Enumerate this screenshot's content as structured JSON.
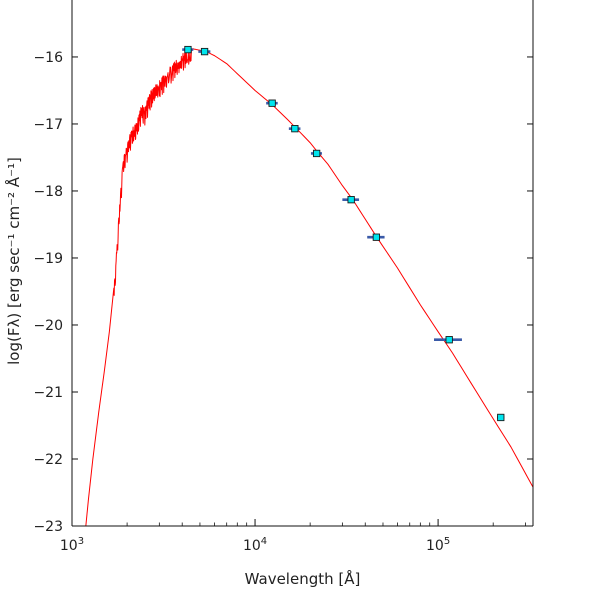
{
  "chart_data": {
    "type": "line",
    "xlabel": "Wavelength [Å]",
    "ylabel": "log(Fλ) [erg sec⁻¹ cm⁻² Å⁻¹]",
    "x_scale": "log",
    "xlim": [
      1000,
      330000
    ],
    "ylim": [
      -23,
      -15.15
    ],
    "x_ticks": [
      {
        "value": 1000,
        "base": "10",
        "exp": "3"
      },
      {
        "value": 10000,
        "base": "10",
        "exp": "4"
      },
      {
        "value": 100000,
        "base": "10",
        "exp": "5"
      }
    ],
    "y_ticks": [
      -16,
      -17,
      -18,
      -19,
      -20,
      -21,
      -22,
      -23
    ],
    "grid": false,
    "colors": {
      "model": "#ff0000",
      "errorbar": "#3a5aa8",
      "marker_fill": "#00e5ee",
      "marker_edge": "#1a1a1a",
      "axis": "#111111"
    },
    "series": [
      {
        "kind": "model_spectrum",
        "x": [
          1190,
          1230,
          1300,
          1400,
          1500,
          1600,
          1700,
          1800,
          1900,
          2000,
          2100,
          2200,
          2300,
          2400,
          2500,
          2600,
          2700,
          2800,
          3000,
          3200,
          3500,
          3800,
          4000,
          4300,
          4600,
          5000,
          5500,
          6000,
          7000,
          8000,
          10000,
          12500,
          15000,
          17000,
          20000,
          22000,
          25000,
          30000,
          34000,
          40000,
          46000,
          60000,
          80000,
          100000,
          120000,
          150000,
          200000,
          250000,
          330000
        ],
        "y": [
          -23.0,
          -22.6,
          -22.0,
          -21.3,
          -20.7,
          -20.1,
          -19.4,
          -18.4,
          -17.5,
          -17.3,
          -17.1,
          -17.0,
          -16.9,
          -16.7,
          -16.75,
          -16.6,
          -16.5,
          -16.45,
          -16.35,
          -16.25,
          -16.12,
          -16.02,
          -15.95,
          -15.9,
          -15.88,
          -15.9,
          -15.93,
          -15.98,
          -16.1,
          -16.25,
          -16.5,
          -16.72,
          -16.93,
          -17.08,
          -17.28,
          -17.42,
          -17.6,
          -17.92,
          -18.12,
          -18.42,
          -18.68,
          -19.15,
          -19.7,
          -20.1,
          -20.42,
          -20.85,
          -21.4,
          -21.82,
          -22.42
        ]
      },
      {
        "kind": "photometry",
        "x": [
          4300,
          5300,
          12400,
          16500,
          21700,
          33500,
          46000,
          115000,
          220000
        ],
        "y": [
          -15.89,
          -15.92,
          -16.69,
          -17.07,
          -17.44,
          -18.13,
          -18.69,
          -20.22,
          -21.38
        ],
        "x_err_lo": [
          300,
          400,
          900,
          1200,
          1500,
          3500,
          5000,
          20000,
          10000
        ],
        "x_err_hi": [
          300,
          400,
          900,
          1200,
          1500,
          3500,
          5000,
          20000,
          10000
        ]
      }
    ]
  }
}
